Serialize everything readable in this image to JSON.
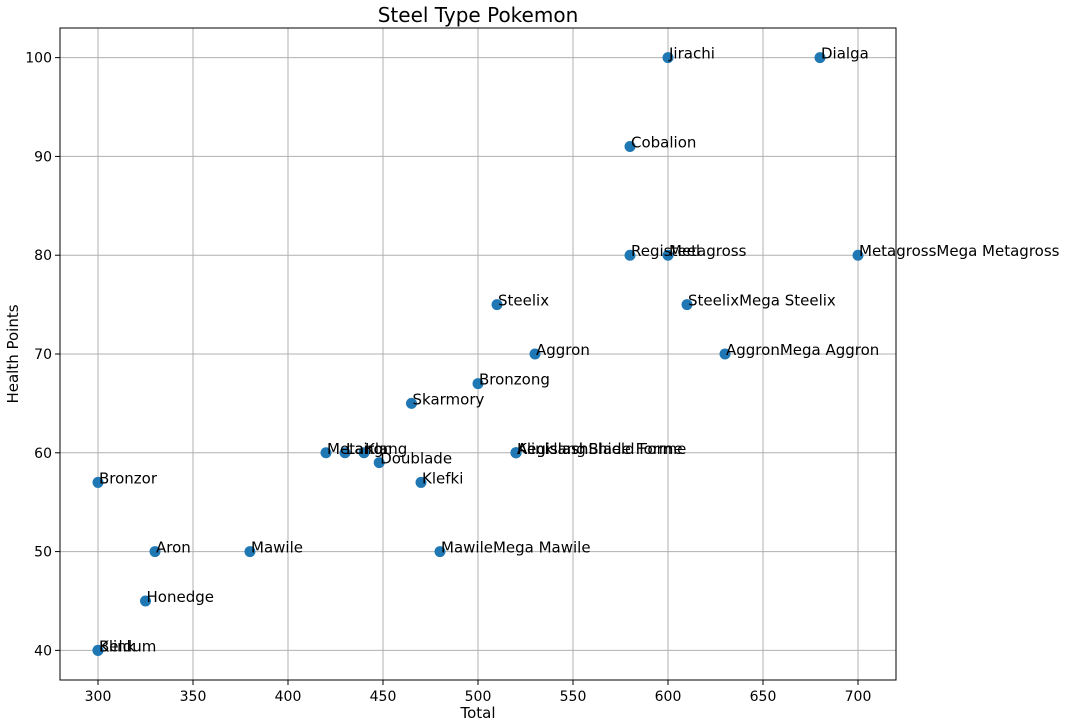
{
  "chart_data": {
    "type": "scatter",
    "title": "Steel Type Pokemon",
    "xlabel": "Total",
    "ylabel": "Health Points",
    "xlim": [
      280,
      720
    ],
    "ylim": [
      37,
      103
    ],
    "xticks": [
      300,
      350,
      400,
      450,
      500,
      550,
      600,
      650,
      700
    ],
    "yticks": [
      40,
      50,
      60,
      70,
      80,
      90,
      100
    ],
    "grid": true,
    "marker_color": "#1f77b4",
    "points": [
      {
        "x": 600,
        "y": 100,
        "label": "Jirachi"
      },
      {
        "x": 680,
        "y": 100,
        "label": "Dialga"
      },
      {
        "x": 580,
        "y": 91,
        "label": "Cobalion"
      },
      {
        "x": 580,
        "y": 80,
        "label": "Registeel"
      },
      {
        "x": 600,
        "y": 80,
        "label": "Metagross"
      },
      {
        "x": 700,
        "y": 80,
        "label": "MetagrossMega Metagross"
      },
      {
        "x": 510,
        "y": 75,
        "label": "Steelix"
      },
      {
        "x": 610,
        "y": 75,
        "label": "SteelixMega Steelix"
      },
      {
        "x": 530,
        "y": 70,
        "label": "Aggron"
      },
      {
        "x": 630,
        "y": 70,
        "label": "AggronMega Aggron"
      },
      {
        "x": 500,
        "y": 67,
        "label": "Bronzong"
      },
      {
        "x": 465,
        "y": 65,
        "label": "Skarmory"
      },
      {
        "x": 420,
        "y": 60,
        "label": "Metang"
      },
      {
        "x": 430,
        "y": 60,
        "label": "Lairon"
      },
      {
        "x": 440,
        "y": 60,
        "label": "Klang"
      },
      {
        "x": 520,
        "y": 60,
        "label": "Klinklang"
      },
      {
        "x": 520,
        "y": 60,
        "label": "AegislashBlade Forme"
      },
      {
        "x": 520,
        "y": 60,
        "label": "AegislashShield Forme"
      },
      {
        "x": 448,
        "y": 59,
        "label": "Doublade"
      },
      {
        "x": 300,
        "y": 57,
        "label": "Bronzor"
      },
      {
        "x": 470,
        "y": 57,
        "label": "Klefki"
      },
      {
        "x": 330,
        "y": 50,
        "label": "Aron"
      },
      {
        "x": 380,
        "y": 50,
        "label": "Mawile"
      },
      {
        "x": 480,
        "y": 50,
        "label": "MawileMega Mawile"
      },
      {
        "x": 325,
        "y": 45,
        "label": "Honedge"
      },
      {
        "x": 300,
        "y": 40,
        "label": "Beldum"
      },
      {
        "x": 300,
        "y": 40,
        "label": "Klink"
      }
    ]
  }
}
